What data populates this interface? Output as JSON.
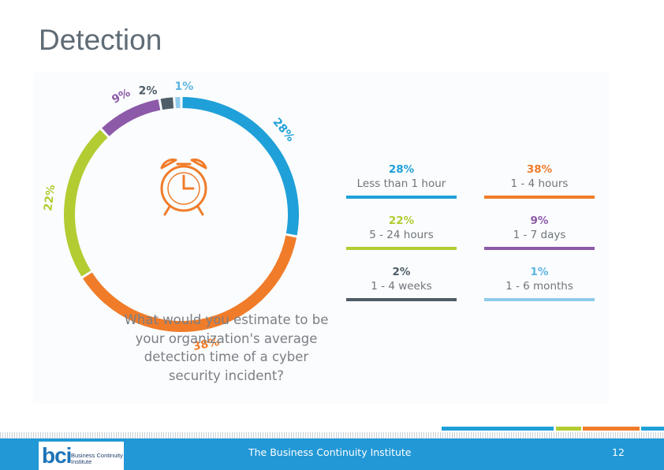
{
  "slide": {
    "title": "Detection",
    "footer_text": "The Business Continuity Institute",
    "page_number": "12"
  },
  "logo": {
    "mark": "bci",
    "text_line1": "Business Continuity",
    "text_line2": "Institute"
  },
  "question": "What would you estimate to be your organization's average detection time of a cyber security incident?",
  "chart_data": {
    "type": "pie",
    "style": "donut",
    "series": [
      {
        "label": "Less than 1 hour",
        "value": 28,
        "pct_label": "28%",
        "color": "#1fa0d8"
      },
      {
        "label": "1 - 4 hours",
        "value": 38,
        "pct_label": "38%",
        "color": "#f07c2a"
      },
      {
        "label": "5 - 24 hours",
        "value": 22,
        "pct_label": "22%",
        "color": "#b2cc32"
      },
      {
        "label": "1 - 7 days",
        "value": 9,
        "pct_label": "9%",
        "color": "#8c5aa8"
      },
      {
        "label": "1 - 4 weeks",
        "value": 2,
        "pct_label": "2%",
        "color": "#4f5d68"
      },
      {
        "label": "1 - 6 months",
        "value": 1,
        "pct_label": "1%",
        "color": "#8fcbeb"
      }
    ]
  },
  "colors": {
    "footer": "#2298d6",
    "title": "#5f6b75",
    "clock": "#f07c2a"
  },
  "icons": {
    "clock": "alarm-clock-icon"
  }
}
